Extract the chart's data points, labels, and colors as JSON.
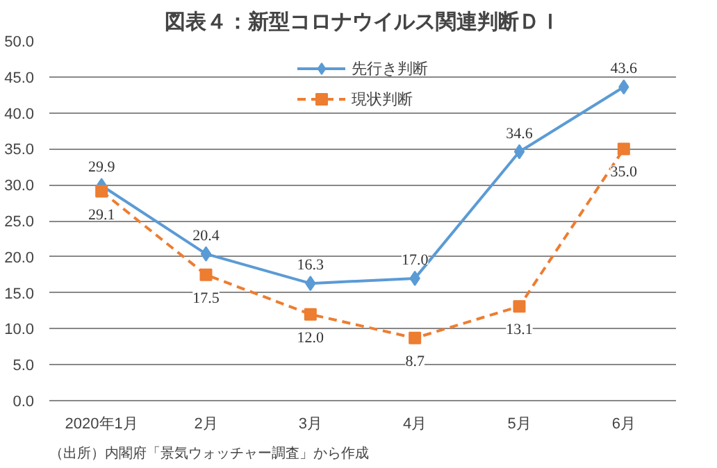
{
  "chart_data": {
    "type": "line",
    "title": "図表４：新型コロナウイルス関連判断ＤＩ",
    "categories": [
      "2020年1月",
      "2月",
      "3月",
      "4月",
      "5月",
      "6月"
    ],
    "series": [
      {
        "name": "先行き判断",
        "color": "#5b9bd5",
        "marker": "diamond",
        "line_style": "solid",
        "values": [
          29.9,
          20.4,
          16.3,
          17.0,
          34.6,
          43.6
        ],
        "value_labels": [
          "29.9",
          "20.4",
          "16.3",
          "17.0",
          "34.6",
          "43.6"
        ]
      },
      {
        "name": "現状判断",
        "color": "#ed7d31",
        "marker": "square",
        "line_style": "dashed",
        "values": [
          29.1,
          17.5,
          12.0,
          8.7,
          13.1,
          35.0
        ],
        "value_labels": [
          "29.1",
          "17.5",
          "12.0",
          "8.7",
          "13.1",
          "35.0"
        ]
      }
    ],
    "ylim": [
      0,
      50
    ],
    "yticks": [
      {
        "value": 0,
        "label": "0.0"
      },
      {
        "value": 5,
        "label": "5.0"
      },
      {
        "value": 10,
        "label": "10.0"
      },
      {
        "value": 15,
        "label": "15.0"
      },
      {
        "value": 20,
        "label": "20.0"
      },
      {
        "value": 25,
        "label": "25.0"
      },
      {
        "value": 30,
        "label": "30.0"
      },
      {
        "value": 35,
        "label": "35.0"
      },
      {
        "value": 40,
        "label": "40.0"
      },
      {
        "value": 45,
        "label": "45.0"
      },
      {
        "value": 50,
        "label": "50.0"
      }
    ],
    "grid": "y",
    "legend": "top",
    "annotations": [
      "（出所）内閣府「景気ウォッチャー調査」から作成"
    ]
  }
}
